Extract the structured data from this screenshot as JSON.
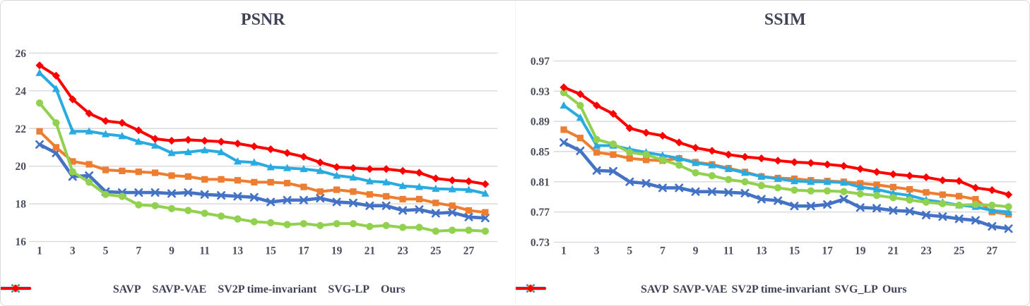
{
  "figure": {
    "description": "Two line charts comparing video prediction methods per frame index",
    "grid_color": "#d9d9d9",
    "text_color": "#404356"
  },
  "chart_data": [
    {
      "type": "line",
      "title": "PSNR",
      "xlabel": "",
      "ylabel": "",
      "x_range": [
        1,
        28
      ],
      "xticks": [
        1,
        3,
        5,
        7,
        9,
        11,
        13,
        15,
        17,
        19,
        21,
        23,
        25,
        27
      ],
      "ylim": [
        16,
        26
      ],
      "yticks": [
        16,
        18,
        20,
        22,
        24,
        26
      ],
      "ytick_labels": [
        "16",
        "18",
        "20",
        "22",
        "24",
        "26"
      ],
      "grid": true,
      "legend_position": "bottom",
      "series": [
        {
          "name": "SAVP",
          "color": "#4472C4",
          "marker": "x",
          "width": 4.6,
          "values": [
            21.15,
            20.7,
            19.45,
            19.5,
            18.65,
            18.6,
            18.6,
            18.6,
            18.55,
            18.6,
            18.5,
            18.45,
            18.4,
            18.35,
            18.1,
            18.2,
            18.2,
            18.3,
            18.1,
            18.05,
            17.9,
            17.9,
            17.65,
            17.7,
            17.5,
            17.55,
            17.3,
            17.25
          ]
        },
        {
          "name": "SAVP-VAE",
          "color": "#ED7D31",
          "marker": "square",
          "width": 4,
          "values": [
            21.85,
            21.0,
            20.25,
            20.1,
            19.8,
            19.75,
            19.7,
            19.65,
            19.5,
            19.45,
            19.3,
            19.3,
            19.25,
            19.15,
            19.15,
            19.1,
            18.9,
            18.65,
            18.75,
            18.65,
            18.5,
            18.4,
            18.25,
            18.25,
            18.05,
            17.9,
            17.65,
            17.55
          ]
        },
        {
          "name": "SV2P time-invariant",
          "color": "#29ABE2",
          "marker": "triangle",
          "width": 4,
          "values": [
            24.95,
            24.1,
            21.85,
            21.85,
            21.7,
            21.6,
            21.3,
            21.1,
            20.7,
            20.75,
            20.85,
            20.75,
            20.25,
            20.2,
            19.95,
            19.9,
            19.85,
            19.75,
            19.5,
            19.4,
            19.2,
            19.15,
            18.95,
            18.9,
            18.8,
            18.78,
            18.75,
            18.55
          ]
        },
        {
          "name": "SVG-LP",
          "color": "#92D050",
          "marker": "circle",
          "width": 4,
          "values": [
            23.35,
            22.3,
            19.7,
            19.15,
            18.5,
            18.4,
            17.95,
            17.9,
            17.75,
            17.65,
            17.5,
            17.35,
            17.2,
            17.05,
            17.0,
            16.9,
            16.95,
            16.85,
            16.95,
            16.95,
            16.8,
            16.85,
            16.75,
            16.75,
            16.55,
            16.6,
            16.6,
            16.55
          ]
        },
        {
          "name": "Ours",
          "color": "#FF0000",
          "marker": "diamond",
          "width": 4,
          "values": [
            25.35,
            24.8,
            23.55,
            22.8,
            22.4,
            22.3,
            21.9,
            21.45,
            21.35,
            21.4,
            21.35,
            21.3,
            21.2,
            21.05,
            20.9,
            20.7,
            20.5,
            20.2,
            19.95,
            19.9,
            19.85,
            19.85,
            19.75,
            19.65,
            19.35,
            19.25,
            19.2,
            19.05
          ]
        }
      ]
    },
    {
      "type": "line",
      "title": "SSIM",
      "xlabel": "",
      "ylabel": "",
      "x_range": [
        1,
        28
      ],
      "xticks": [
        1,
        3,
        5,
        7,
        9,
        11,
        13,
        15,
        17,
        19,
        21,
        23,
        25,
        27
      ],
      "ylim": [
        0.73,
        0.97
      ],
      "yticks": [
        0.73,
        0.77,
        0.81,
        0.85,
        0.89,
        0.93,
        0.97
      ],
      "ytick_labels": [
        "0.73",
        "0.77",
        "0.81",
        "0.85",
        "0.89",
        "0.93",
        "0.97"
      ],
      "grid": true,
      "legend_position": "bottom",
      "series": [
        {
          "name": "SAVP",
          "color": "#4472C4",
          "marker": "x",
          "width": 4.6,
          "values": [
            0.862,
            0.851,
            0.825,
            0.824,
            0.81,
            0.808,
            0.802,
            0.802,
            0.797,
            0.797,
            0.796,
            0.795,
            0.787,
            0.785,
            0.778,
            0.778,
            0.78,
            0.787,
            0.776,
            0.775,
            0.772,
            0.771,
            0.766,
            0.764,
            0.761,
            0.759,
            0.751,
            0.748
          ]
        },
        {
          "name": "SAVP-VAE",
          "color": "#ED7D31",
          "marker": "square",
          "width": 4,
          "values": [
            0.879,
            0.868,
            0.849,
            0.846,
            0.841,
            0.839,
            0.838,
            0.841,
            0.836,
            0.833,
            0.828,
            0.823,
            0.817,
            0.815,
            0.814,
            0.812,
            0.811,
            0.81,
            0.808,
            0.806,
            0.803,
            0.8,
            0.796,
            0.793,
            0.791,
            0.787,
            0.77,
            0.767
          ]
        },
        {
          "name": "SV2P time-invariant",
          "color": "#29ABE2",
          "marker": "triangle",
          "width": 4,
          "values": [
            0.911,
            0.895,
            0.858,
            0.858,
            0.853,
            0.849,
            0.845,
            0.841,
            0.835,
            0.832,
            0.827,
            0.822,
            0.817,
            0.814,
            0.811,
            0.81,
            0.81,
            0.809,
            0.803,
            0.8,
            0.795,
            0.792,
            0.786,
            0.783,
            0.779,
            0.777,
            0.772,
            0.77
          ]
        },
        {
          "name": "SVG_LP",
          "color": "#92D050",
          "marker": "circle",
          "width": 4,
          "values": [
            0.928,
            0.911,
            0.866,
            0.86,
            0.849,
            0.846,
            0.839,
            0.832,
            0.822,
            0.818,
            0.813,
            0.81,
            0.805,
            0.802,
            0.799,
            0.798,
            0.798,
            0.797,
            0.794,
            0.792,
            0.789,
            0.786,
            0.783,
            0.781,
            0.779,
            0.78,
            0.779,
            0.777
          ]
        },
        {
          "name": "Ours",
          "color": "#FF0000",
          "marker": "diamond",
          "width": 4,
          "values": [
            0.935,
            0.926,
            0.911,
            0.9,
            0.881,
            0.875,
            0.871,
            0.862,
            0.855,
            0.851,
            0.846,
            0.843,
            0.841,
            0.838,
            0.836,
            0.835,
            0.833,
            0.831,
            0.827,
            0.823,
            0.82,
            0.818,
            0.816,
            0.812,
            0.811,
            0.802,
            0.799,
            0.793
          ]
        }
      ]
    }
  ]
}
